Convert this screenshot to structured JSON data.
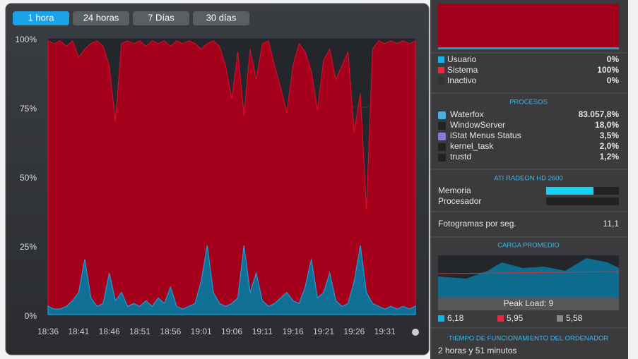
{
  "tabs": [
    "1 hora",
    "24 horas",
    "7 Días",
    "30 días"
  ],
  "chart_data": {
    "type": "area",
    "categories": [
      "18:36",
      null,
      null,
      null,
      null,
      "18:41",
      null,
      null,
      null,
      null,
      "18:46",
      null,
      null,
      null,
      null,
      "18:51",
      null,
      null,
      null,
      null,
      "18:56",
      null,
      null,
      null,
      null,
      "19:01",
      null,
      null,
      null,
      null,
      "19:06",
      null,
      null,
      null,
      null,
      "19:11",
      null,
      null,
      null,
      null,
      "19:16",
      null,
      null,
      null,
      null,
      "19:21",
      null,
      null,
      null,
      null,
      "19:26",
      null,
      null,
      null,
      null,
      "19:31",
      null,
      null,
      null,
      null,
      null
    ],
    "series": [
      {
        "name": "Usuario",
        "color": "#1b9fd8",
        "values": [
          3,
          2,
          2,
          3,
          5,
          8,
          20,
          6,
          3,
          4,
          15,
          5,
          8,
          3,
          4,
          3,
          5,
          3,
          6,
          4,
          10,
          3,
          2,
          3,
          4,
          12,
          25,
          8,
          4,
          3,
          4,
          6,
          25,
          8,
          15,
          5,
          3,
          4,
          6,
          8,
          5,
          4,
          10,
          20,
          6,
          8,
          15,
          5,
          3,
          4,
          12,
          25,
          8,
          4,
          3,
          2,
          3,
          2,
          3,
          2,
          3
        ]
      },
      {
        "name": "Sistema",
        "color": "#a5001b",
        "values": [
          96,
          96,
          97,
          94,
          94,
          85,
          76,
          92,
          96,
          93,
          75,
          65,
          90,
          96,
          94,
          96,
          92,
          96,
          92,
          95,
          87,
          96,
          96,
          96,
          94,
          84,
          73,
          91,
          93,
          87,
          74,
          89,
          47,
          88,
          70,
          93,
          96,
          86,
          76,
          65,
          85,
          94,
          85,
          68,
          68,
          84,
          81,
          80,
          87,
          91,
          54,
          55,
          30,
          92,
          96,
          96,
          96,
          96,
          96,
          96,
          96
        ]
      }
    ],
    "ylim": [
      0,
      100
    ],
    "yticks": [
      {
        "value": 0,
        "label": "0%"
      },
      {
        "value": 25,
        "label": "25%"
      },
      {
        "value": 50,
        "label": "50%"
      },
      {
        "value": 75,
        "label": "75%"
      },
      {
        "value": 100,
        "label": "100%"
      }
    ],
    "grid": true
  },
  "cpu_summary_values": [
    "0%",
    "100%",
    "0%"
  ],
  "idle_label": "Inactivo",
  "processes": {
    "title": "PROCESOS",
    "items": [
      {
        "name": "Waterfox",
        "value": "83.057,8%"
      },
      {
        "name": "WindowServer",
        "value": "18,0%"
      },
      {
        "name": "iStat Menus Status",
        "value": "3,5%"
      },
      {
        "name": "kernel_task",
        "value": "2,0%"
      },
      {
        "name": "trustd",
        "value": "1,2%"
      }
    ]
  },
  "gpu": {
    "title": "ATI RADEON HD 2600",
    "memory_label": "Memoria",
    "memory_usage": 65,
    "processor_label": "Procesador",
    "processor_usage": 0
  },
  "fps": {
    "label": "Fotogramas por seg.",
    "value": "11,1"
  },
  "load": {
    "title": "CARGA PROMEDIO",
    "peak": "Peak Load: 9",
    "values": [
      "6,18",
      "5,95",
      "5,58"
    ]
  },
  "uptime": {
    "title": "TIEMPO DE FUNCIONAMIENTO DEL ORDENADOR",
    "value": "2 horas y 51 minutos"
  }
}
